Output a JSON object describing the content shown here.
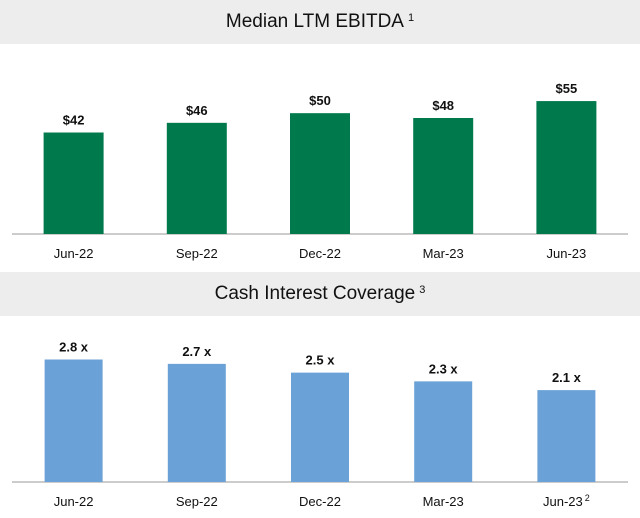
{
  "chart_data": [
    {
      "type": "bar",
      "title": "Median LTM EBITDA",
      "title_note": "1",
      "categories": [
        "Jun-22",
        "Sep-22",
        "Dec-22",
        "Mar-23",
        "Jun-23"
      ],
      "values": [
        42,
        46,
        50,
        48,
        55
      ],
      "data_labels": [
        "$42",
        "$46",
        "$50",
        "$48",
        "$55"
      ],
      "ylim": [
        0,
        60
      ],
      "color": "#007a4d",
      "grid": false
    },
    {
      "type": "bar",
      "title": "Cash Interest Coverage",
      "title_note": "3",
      "categories": [
        "Jun-22",
        "Sep-22",
        "Dec-22",
        "Mar-23",
        "Jun-23"
      ],
      "category_notes": [
        "",
        "",
        "",
        "",
        "2"
      ],
      "values": [
        2.8,
        2.7,
        2.5,
        2.3,
        2.1
      ],
      "data_labels": [
        "2.8 x",
        "2.7 x",
        "2.5 x",
        "2.3 x",
        "2.1 x"
      ],
      "ylim": [
        0,
        3.2
      ],
      "color": "#6aa1d6",
      "grid": false
    }
  ]
}
